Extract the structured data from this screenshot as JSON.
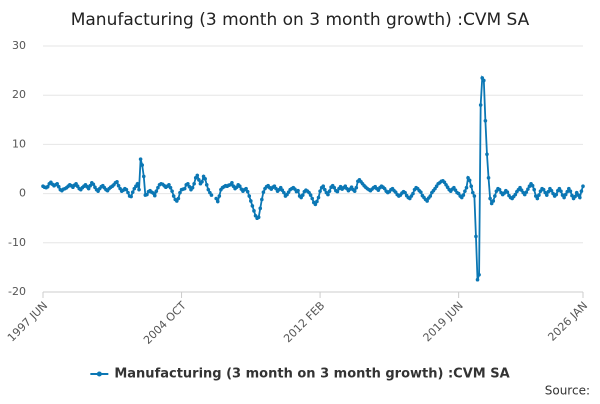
{
  "chart_data": {
    "type": "line",
    "title": "Manufacturing (3 month on 3 month growth) :CVM SA",
    "source": "Source:",
    "categories": [
      "1997 JUN",
      null,
      null,
      null,
      null,
      null,
      null,
      null,
      null,
      null,
      null,
      null,
      null,
      null,
      null,
      null,
      null,
      null,
      null,
      null,
      null,
      null,
      null,
      null,
      null,
      null,
      null,
      null,
      null,
      null,
      null,
      null,
      null,
      null,
      null,
      null,
      null,
      null,
      null,
      null,
      null,
      null,
      null,
      null,
      null,
      null,
      null,
      null,
      null,
      null,
      null,
      null,
      null,
      null,
      null,
      null,
      null,
      null,
      null,
      null,
      null,
      null,
      null,
      null,
      null,
      null,
      null,
      null,
      null,
      null,
      null,
      null,
      null,
      null,
      null,
      null,
      null,
      null,
      null,
      null,
      null,
      null,
      null,
      null,
      null,
      null,
      null,
      null,
      "2004 OCT",
      null,
      null,
      null,
      null,
      null,
      null,
      null,
      null,
      null,
      null,
      null,
      null,
      null,
      null,
      null,
      null,
      null,
      null,
      null,
      null,
      null,
      null,
      null,
      null,
      null,
      null,
      null,
      null,
      null,
      null,
      null,
      null,
      null,
      null,
      null,
      null,
      null,
      null,
      null,
      null,
      null,
      null,
      null,
      null,
      null,
      null,
      null,
      null,
      null,
      null,
      null,
      null,
      null,
      null,
      null,
      null,
      null,
      null,
      null,
      null,
      null,
      null,
      null,
      null,
      null,
      null,
      null,
      null,
      null,
      null,
      null,
      null,
      null,
      null,
      null,
      null,
      null,
      null,
      null,
      null,
      null,
      null,
      null,
      null,
      null,
      null,
      null,
      "2012 FEB",
      null,
      null,
      null,
      null,
      null,
      null,
      null,
      null,
      null,
      null,
      null,
      null,
      null,
      null,
      null,
      null,
      null,
      null,
      null,
      null,
      null,
      null,
      null,
      null,
      null,
      null,
      null,
      null,
      null,
      null,
      null,
      null,
      null,
      null,
      null,
      null,
      null,
      null,
      null,
      null,
      null,
      null,
      null,
      null,
      null,
      null,
      null,
      null,
      null,
      null,
      null,
      null,
      null,
      null,
      null,
      null,
      null,
      null,
      null,
      null,
      null,
      null,
      null,
      null,
      null,
      null,
      null,
      null,
      null,
      null,
      null,
      null,
      null,
      null,
      null,
      null,
      null,
      null,
      null,
      null,
      null,
      null,
      null,
      null,
      null,
      null,
      null,
      "2019 JUN",
      null,
      null,
      null,
      null,
      null,
      null,
      null,
      null,
      null,
      null,
      null,
      null,
      null,
      null,
      null,
      null,
      null,
      null,
      null,
      null,
      null,
      null,
      null,
      null,
      null,
      null,
      null,
      null,
      null,
      null,
      null,
      null,
      null,
      null,
      null,
      null,
      null,
      null,
      null,
      null,
      null,
      null,
      null,
      null,
      null,
      null,
      null,
      null,
      null,
      null,
      null,
      null,
      null,
      null,
      null,
      null,
      null,
      null,
      null,
      null,
      null,
      null,
      null,
      null,
      null,
      null,
      null,
      null,
      null,
      null,
      null,
      null,
      null,
      null,
      null,
      null,
      null,
      null,
      "2026 JAN"
    ],
    "series": [
      {
        "name": "Manufacturing (3 month on 3 month growth) :CVM SA",
        "color": "#0b77b4",
        "values": [
          1.5,
          1.3,
          1.2,
          1.4,
          2.0,
          2.3,
          1.9,
          1.6,
          1.8,
          2.0,
          1.4,
          0.8,
          0.6,
          0.9,
          1.0,
          1.2,
          1.5,
          1.8,
          1.6,
          1.3,
          1.7,
          2.0,
          1.5,
          1.0,
          0.8,
          1.2,
          1.5,
          1.8,
          1.4,
          1.0,
          1.6,
          2.2,
          1.9,
          1.3,
          0.8,
          0.5,
          1.0,
          1.4,
          1.6,
          1.2,
          0.8,
          0.6,
          1.0,
          1.3,
          1.5,
          1.8,
          2.2,
          2.4,
          1.6,
          1.0,
          0.5,
          0.7,
          1.0,
          0.8,
          0.2,
          -0.5,
          -0.6,
          0.3,
          1.0,
          1.5,
          2.0,
          0.8,
          7.0,
          5.8,
          3.5,
          -0.3,
          -0.2,
          0.4,
          0.6,
          0.3,
          0.1,
          -0.4,
          0.5,
          1.2,
          1.8,
          2.0,
          1.9,
          1.6,
          1.3,
          1.5,
          1.8,
          1.2,
          0.5,
          -0.5,
          -1.2,
          -1.5,
          -1.0,
          0.2,
          0.8,
          0.9,
          1.0,
          1.8,
          2.0,
          1.4,
          0.8,
          1.2,
          2.0,
          3.2,
          3.7,
          2.8,
          2.0,
          2.4,
          3.5,
          3.0,
          1.8,
          0.8,
          0.2,
          -0.3,
          null,
          null,
          -1.0,
          -1.6,
          -0.5,
          0.8,
          1.2,
          1.4,
          1.6,
          1.5,
          1.7,
          1.8,
          2.2,
          1.5,
          1.0,
          1.3,
          1.8,
          1.5,
          0.9,
          0.5,
          0.8,
          1.0,
          0.4,
          -0.5,
          -1.5,
          -2.5,
          -3.5,
          -4.5,
          -5.0,
          -4.8,
          -3.0,
          -1.2,
          0.3,
          1.0,
          1.4,
          1.6,
          1.2,
          0.9,
          1.3,
          1.5,
          1.0,
          0.5,
          0.8,
          1.2,
          0.7,
          0.2,
          -0.5,
          -0.2,
          0.3,
          0.8,
          1.0,
          1.2,
          0.9,
          0.4,
          0.6,
          -0.5,
          -0.8,
          -0.3,
          0.4,
          0.7,
          0.5,
          0.2,
          -0.3,
          -1.0,
          -1.8,
          -2.2,
          -1.6,
          -0.8,
          0.5,
          1.2,
          1.5,
          0.8,
          0.2,
          -0.2,
          0.5,
          1.3,
          1.6,
          1.2,
          0.6,
          0.4,
          1.0,
          1.4,
          0.9,
          1.2,
          1.5,
          1.0,
          0.6,
          0.9,
          1.3,
          0.8,
          0.5,
          1.2,
          2.5,
          2.8,
          2.4,
          2.0,
          1.6,
          1.3,
          1.0,
          0.8,
          0.6,
          0.9,
          1.2,
          1.4,
          1.0,
          0.7,
          1.2,
          1.5,
          1.3,
          1.0,
          0.5,
          0.2,
          0.4,
          0.8,
          1.0,
          0.6,
          0.3,
          -0.2,
          -0.5,
          -0.3,
          0.1,
          0.4,
          0.2,
          -0.4,
          -0.8,
          -1.0,
          -0.5,
          0.0,
          0.8,
          1.2,
          1.0,
          0.6,
          0.3,
          -0.4,
          -0.8,
          -1.2,
          -1.5,
          -0.9,
          -0.5,
          0.2,
          0.6,
          1.0,
          1.5,
          2.0,
          2.2,
          2.5,
          2.6,
          2.3,
          1.8,
          1.3,
          0.8,
          0.5,
          0.9,
          1.2,
          0.7,
          0.2,
          0.0,
          -0.5,
          -0.8,
          -0.3,
          0.5,
          1.2,
          3.2,
          2.7,
          1.5,
          0.2,
          -0.5,
          -8.7,
          -17.5,
          -16.5,
          18.0,
          23.5,
          23.0,
          14.8,
          8.0,
          3.2,
          -1.0,
          -2.0,
          -1.5,
          -0.5,
          0.5,
          1.0,
          0.8,
          0.2,
          -0.2,
          0.1,
          0.6,
          0.3,
          -0.4,
          -0.8,
          -1.0,
          -0.6,
          -0.2,
          0.4,
          0.8,
          1.2,
          0.7,
          0.2,
          -0.2,
          0.3,
          0.9,
          1.5,
          2.0,
          1.6,
          0.8,
          -0.5,
          -1.0,
          -0.3,
          0.5,
          1.0,
          0.8,
          0.2,
          -0.3,
          0.4,
          1.0,
          0.6,
          0.0,
          -0.5,
          -0.2,
          0.6,
          1.0,
          0.5,
          -0.3,
          -0.8,
          -0.2,
          0.4,
          1.0,
          0.5,
          -0.4,
          -1.0,
          -0.6,
          0.2,
          -0.3,
          -0.8,
          0.5,
          1.5
        ]
      }
    ],
    "ylim": [
      -20,
      30
    ],
    "yticks": [
      -20,
      -10,
      0,
      10,
      20,
      30
    ],
    "grid": true,
    "legend": "bottom"
  }
}
